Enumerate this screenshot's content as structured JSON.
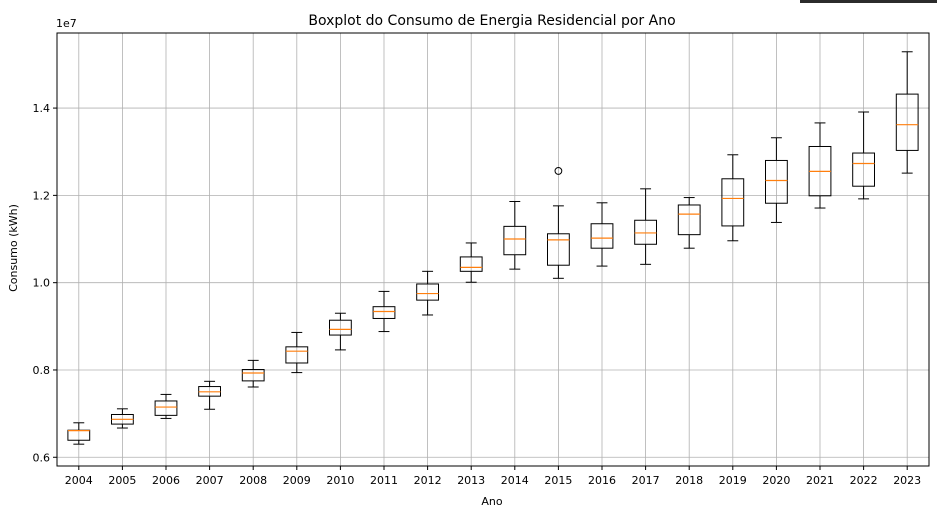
{
  "chart_data": {
    "type": "boxplot",
    "title": "Boxplot do Consumo de Energia Residencial por Ano",
    "xlabel": "Ano",
    "ylabel": "Consumo (kWh)",
    "y_offset_label": "1e7",
    "ylim": [
      0.58,
      1.572
    ],
    "grid": true,
    "yticks": [
      0.6,
      0.8,
      1.0,
      1.2,
      1.4
    ],
    "ytick_labels": [
      "0.6",
      "0.8",
      "1.0",
      "1.2",
      "1.4"
    ],
    "categories": [
      "2004",
      "2005",
      "2006",
      "2007",
      "2008",
      "2009",
      "2010",
      "2011",
      "2012",
      "2013",
      "2014",
      "2015",
      "2016",
      "2017",
      "2018",
      "2019",
      "2020",
      "2021",
      "2022",
      "2023"
    ],
    "boxes": [
      {
        "whislo": 0.63,
        "q1": 0.639,
        "med": 0.661,
        "q3": 0.662,
        "whishi": 0.679,
        "fliers": []
      },
      {
        "whislo": 0.667,
        "q1": 0.676,
        "med": 0.687,
        "q3": 0.698,
        "whishi": 0.711,
        "fliers": []
      },
      {
        "whislo": 0.689,
        "q1": 0.696,
        "med": 0.715,
        "q3": 0.729,
        "whishi": 0.744,
        "fliers": []
      },
      {
        "whislo": 0.71,
        "q1": 0.74,
        "med": 0.75,
        "q3": 0.762,
        "whishi": 0.774,
        "fliers": []
      },
      {
        "whislo": 0.761,
        "q1": 0.775,
        "med": 0.793,
        "q3": 0.801,
        "whishi": 0.822,
        "fliers": []
      },
      {
        "whislo": 0.794,
        "q1": 0.816,
        "med": 0.843,
        "q3": 0.853,
        "whishi": 0.886,
        "fliers": []
      },
      {
        "whislo": 0.846,
        "q1": 0.88,
        "med": 0.893,
        "q3": 0.914,
        "whishi": 0.93,
        "fliers": []
      },
      {
        "whislo": 0.888,
        "q1": 0.918,
        "med": 0.934,
        "q3": 0.945,
        "whishi": 0.98,
        "fliers": []
      },
      {
        "whislo": 0.926,
        "q1": 0.96,
        "med": 0.975,
        "q3": 0.997,
        "whishi": 1.026,
        "fliers": []
      },
      {
        "whislo": 1.001,
        "q1": 1.026,
        "med": 1.035,
        "q3": 1.059,
        "whishi": 1.091,
        "fliers": []
      },
      {
        "whislo": 1.031,
        "q1": 1.064,
        "med": 1.1,
        "q3": 1.129,
        "whishi": 1.186,
        "fliers": []
      },
      {
        "whislo": 1.01,
        "q1": 1.04,
        "med": 1.098,
        "q3": 1.112,
        "whishi": 1.176,
        "fliers": [
          1.256
        ]
      },
      {
        "whislo": 1.038,
        "q1": 1.079,
        "med": 1.102,
        "q3": 1.135,
        "whishi": 1.183,
        "fliers": []
      },
      {
        "whislo": 1.042,
        "q1": 1.088,
        "med": 1.114,
        "q3": 1.143,
        "whishi": 1.215,
        "fliers": []
      },
      {
        "whislo": 1.079,
        "q1": 1.11,
        "med": 1.157,
        "q3": 1.178,
        "whishi": 1.195,
        "fliers": []
      },
      {
        "whislo": 1.096,
        "q1": 1.13,
        "med": 1.193,
        "q3": 1.238,
        "whishi": 1.293,
        "fliers": []
      },
      {
        "whislo": 1.138,
        "q1": 1.182,
        "med": 1.234,
        "q3": 1.28,
        "whishi": 1.332,
        "fliers": []
      },
      {
        "whislo": 1.171,
        "q1": 1.199,
        "med": 1.255,
        "q3": 1.312,
        "whishi": 1.366,
        "fliers": []
      },
      {
        "whislo": 1.192,
        "q1": 1.221,
        "med": 1.273,
        "q3": 1.297,
        "whishi": 1.391,
        "fliers": []
      },
      {
        "whislo": 1.251,
        "q1": 1.303,
        "med": 1.362,
        "q3": 1.432,
        "whishi": 1.529,
        "fliers": []
      }
    ],
    "colors": {
      "box": "#000000",
      "median": "#ff7f0e",
      "grid": "#b0b0b0"
    }
  }
}
